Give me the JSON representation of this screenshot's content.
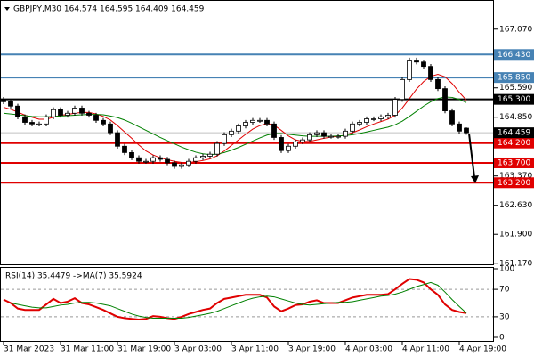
{
  "chart_data": [
    {
      "type": "candlestick",
      "title": "GBPJPY,M30  164.574 164.595 164.409 164.459",
      "categories": [
        "31 Mar 2023",
        null,
        null,
        null,
        null,
        null,
        null,
        null,
        "31 Mar 11:00",
        null,
        null,
        null,
        null,
        null,
        null,
        null,
        "31 Mar 19:00",
        null,
        null,
        null,
        null,
        null,
        null,
        null,
        "3 Apr 03:00",
        null,
        null,
        null,
        null,
        null,
        null,
        null,
        "3 Apr 11:00",
        null,
        null,
        null,
        null,
        null,
        null,
        null,
        "3 Apr 19:00",
        null,
        null,
        null,
        null,
        null,
        null,
        null,
        "4 Apr 03:00",
        null,
        null,
        null,
        null,
        null,
        null,
        null,
        "4 Apr 11:00",
        null,
        null,
        null,
        null,
        null,
        null,
        null,
        "4 Apr 19:00",
        null
      ],
      "open": [
        165.3,
        165.24,
        165.13,
        164.86,
        164.72,
        164.68,
        164.68,
        164.86,
        165.04,
        164.9,
        164.95,
        165.08,
        164.95,
        164.9,
        164.77,
        164.68,
        164.46,
        164.12,
        163.96,
        163.83,
        163.74,
        163.74,
        163.83,
        163.79,
        163.7,
        163.61,
        163.65,
        163.74,
        163.83,
        163.87,
        163.92,
        164.19,
        164.41,
        164.5,
        164.63,
        164.72,
        164.77,
        164.77,
        164.68,
        164.34,
        164.01,
        164.12,
        164.23,
        164.28,
        164.41,
        164.46,
        164.37,
        164.37,
        164.37,
        164.5,
        164.68,
        164.72,
        164.81,
        164.81,
        164.86,
        164.9,
        165.3,
        165.8,
        166.29,
        166.24,
        166.13,
        165.8,
        165.57,
        165.01,
        164.68,
        164.574
      ],
      "high": [
        165.36,
        165.3,
        165.19,
        164.92,
        164.78,
        164.74,
        164.92,
        165.1,
        165.1,
        165.01,
        165.14,
        165.14,
        165.01,
        164.96,
        164.83,
        164.74,
        164.52,
        164.18,
        164.02,
        163.89,
        163.8,
        163.89,
        163.89,
        163.85,
        163.76,
        163.71,
        163.8,
        163.89,
        163.93,
        163.98,
        164.25,
        164.47,
        164.56,
        164.69,
        164.78,
        164.83,
        164.83,
        164.83,
        164.74,
        164.4,
        164.18,
        164.29,
        164.34,
        164.47,
        164.52,
        164.52,
        164.43,
        164.43,
        164.56,
        164.74,
        164.78,
        164.87,
        164.87,
        164.92,
        164.96,
        165.36,
        165.86,
        166.35,
        166.35,
        166.3,
        166.19,
        165.86,
        165.63,
        165.07,
        164.74,
        164.595
      ],
      "low": [
        165.18,
        165.07,
        164.8,
        164.66,
        164.62,
        164.62,
        164.62,
        164.8,
        164.84,
        164.84,
        164.89,
        164.89,
        164.84,
        164.71,
        164.62,
        164.4,
        164.06,
        163.9,
        163.77,
        163.68,
        163.68,
        163.68,
        163.73,
        163.64,
        163.55,
        163.55,
        163.59,
        163.68,
        163.77,
        163.81,
        163.86,
        164.13,
        164.35,
        164.44,
        164.57,
        164.66,
        164.71,
        164.62,
        164.28,
        163.95,
        163.95,
        164.06,
        164.17,
        164.22,
        164.35,
        164.31,
        164.31,
        164.31,
        164.31,
        164.44,
        164.62,
        164.66,
        164.75,
        164.75,
        164.8,
        164.84,
        165.24,
        165.74,
        166.18,
        166.07,
        165.74,
        165.51,
        164.95,
        164.62,
        164.44,
        164.409
      ],
      "close": [
        165.24,
        165.13,
        164.86,
        164.72,
        164.68,
        164.68,
        164.86,
        165.04,
        164.9,
        164.95,
        165.08,
        164.95,
        164.9,
        164.77,
        164.68,
        164.46,
        164.12,
        163.96,
        163.83,
        163.74,
        163.74,
        163.83,
        163.79,
        163.7,
        163.61,
        163.65,
        163.74,
        163.83,
        163.87,
        163.92,
        164.19,
        164.41,
        164.5,
        164.63,
        164.72,
        164.77,
        164.77,
        164.68,
        164.34,
        164.01,
        164.12,
        164.23,
        164.28,
        164.41,
        164.46,
        164.37,
        164.37,
        164.37,
        164.5,
        164.68,
        164.72,
        164.81,
        164.81,
        164.86,
        164.9,
        165.3,
        165.8,
        166.29,
        166.24,
        166.13,
        165.8,
        165.57,
        165.01,
        164.68,
        164.5,
        164.459
      ],
      "overlays": [
        {
          "color": "#e00000",
          "values": [
            165.1,
            165.05,
            164.98,
            164.9,
            164.85,
            164.8,
            164.8,
            164.85,
            164.9,
            164.92,
            164.95,
            164.97,
            164.97,
            164.93,
            164.87,
            164.78,
            164.64,
            164.48,
            164.32,
            164.15,
            164.0,
            163.9,
            163.83,
            163.78,
            163.74,
            163.71,
            163.71,
            163.73,
            163.76,
            163.8,
            163.88,
            164.0,
            164.14,
            164.28,
            164.42,
            164.55,
            164.64,
            164.69,
            164.65,
            164.52,
            164.38,
            164.28,
            164.24,
            164.24,
            164.28,
            164.32,
            164.35,
            164.37,
            164.4,
            164.46,
            164.53,
            164.61,
            164.68,
            164.74,
            164.8,
            164.9,
            165.08,
            165.32,
            165.56,
            165.75,
            165.88,
            165.93,
            165.87,
            165.7,
            165.48,
            165.28
          ]
        },
        {
          "color": "#008000",
          "values": [
            164.95,
            164.93,
            164.91,
            164.89,
            164.87,
            164.86,
            164.86,
            164.87,
            164.88,
            164.89,
            164.9,
            164.91,
            164.92,
            164.92,
            164.91,
            164.88,
            164.84,
            164.78,
            164.7,
            164.61,
            164.52,
            164.43,
            164.34,
            164.26,
            164.18,
            164.1,
            164.03,
            163.97,
            163.93,
            163.91,
            163.92,
            163.96,
            164.02,
            164.09,
            164.17,
            164.25,
            164.33,
            164.4,
            164.44,
            164.44,
            164.42,
            164.4,
            164.38,
            164.37,
            164.37,
            164.37,
            164.37,
            164.38,
            164.39,
            164.41,
            164.44,
            164.48,
            164.52,
            164.56,
            164.6,
            164.66,
            164.75,
            164.87,
            165.0,
            165.13,
            165.24,
            165.32,
            165.36,
            165.35,
            165.3,
            165.22
          ]
        }
      ],
      "ylim": [
        161.12,
        167.76
      ],
      "yticks": [
        {
          "value": 167.07,
          "label": "167.070"
        },
        {
          "value": 165.59,
          "label": "165.590"
        },
        {
          "value": 164.85,
          "label": "164.850"
        },
        {
          "value": 163.37,
          "label": "163.370"
        },
        {
          "value": 162.63,
          "label": "162.630"
        },
        {
          "value": 161.9,
          "label": "161.900"
        },
        {
          "value": 161.17,
          "label": "161.170"
        }
      ],
      "levels": [
        {
          "value": 166.43,
          "label": "166.430",
          "color": "#4682b4"
        },
        {
          "value": 165.85,
          "label": "165.850",
          "color": "#4682b4"
        },
        {
          "value": 165.3,
          "label": "165.300",
          "color": "#000000"
        },
        {
          "value": 164.2,
          "label": "164.200",
          "color": "#e00000"
        },
        {
          "value": 163.7,
          "label": "163.700",
          "color": "#e00000"
        },
        {
          "value": 163.2,
          "label": "163.200",
          "color": "#e00000"
        }
      ],
      "current": {
        "value": 164.459,
        "label": "164.459"
      }
    },
    {
      "type": "line",
      "title": "RSI(14) 35.4479  ->MA(7) 35.5924",
      "series": [
        {
          "color": "#e00000",
          "values": [
            55,
            50,
            42,
            40,
            40,
            40,
            48,
            56,
            50,
            52,
            57,
            50,
            48,
            44,
            40,
            35,
            30,
            28,
            27,
            26,
            27,
            31,
            30,
            28,
            27,
            30,
            34,
            37,
            40,
            42,
            50,
            56,
            58,
            60,
            62,
            62,
            62,
            58,
            45,
            38,
            42,
            47,
            48,
            52,
            54,
            50,
            50,
            50,
            54,
            58,
            60,
            62,
            62,
            62,
            63,
            70,
            78,
            85,
            84,
            80,
            70,
            62,
            48,
            40,
            37,
            35.4479
          ]
        },
        {
          "color": "#008000",
          "values": [
            50,
            50,
            48,
            46,
            44,
            43,
            43,
            45,
            47,
            48,
            50,
            51,
            51,
            50,
            48,
            46,
            42,
            38,
            34,
            31,
            29,
            28,
            28,
            28,
            28,
            28,
            29,
            31,
            33,
            35,
            38,
            42,
            46,
            50,
            54,
            57,
            59,
            60,
            59,
            56,
            53,
            50,
            48,
            47,
            48,
            49,
            50,
            51,
            51,
            52,
            54,
            56,
            58,
            60,
            61,
            63,
            66,
            70,
            74,
            77,
            80,
            76,
            66,
            55,
            45,
            35.5924
          ]
        }
      ],
      "ylim": [
        0,
        100
      ],
      "yticks": [
        0,
        30,
        70,
        100
      ],
      "levels": [
        70,
        30
      ]
    }
  ]
}
